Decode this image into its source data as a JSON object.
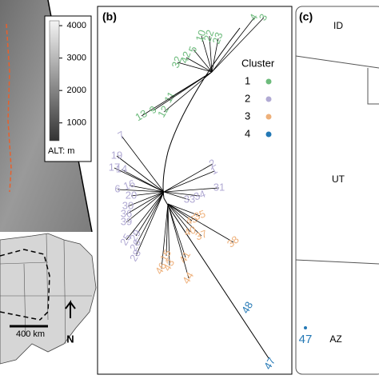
{
  "panel_a": {
    "colorbar": {
      "range": [
        450,
        4150
      ],
      "ticks": [
        1000,
        2000,
        3000,
        4000
      ],
      "unit_label": "ALT: m"
    },
    "scale_label": "400 km",
    "north_label": "N"
  },
  "panel_b": {
    "label": "(b)",
    "legend_title": "Cluster",
    "clusters": [
      {
        "name": "1",
        "color": "#6dbb7c",
        "leaves": [
          "4",
          "3",
          "10",
          "22",
          "23",
          "5",
          "32",
          "42",
          "11",
          "12",
          "13",
          "9"
        ]
      },
      {
        "name": "2",
        "color": "#b1aad4",
        "leaves": [
          "7",
          "19",
          "17",
          "14",
          "6",
          "16",
          "20",
          "2",
          "1",
          "33",
          "34",
          "31",
          "30",
          "36",
          "39",
          "29",
          "26",
          "28",
          "25"
        ]
      },
      {
        "name": "3",
        "color": "#eeb07a",
        "leaves": [
          "35",
          "45",
          "37",
          "40",
          "38",
          "41",
          "44",
          "43",
          "46",
          "15"
        ]
      },
      {
        "name": "4",
        "color": "#2378b5",
        "leaves": [
          "48",
          "47"
        ]
      }
    ]
  },
  "panel_c": {
    "label": "(c)",
    "states": [
      "ID",
      "UT",
      "AZ"
    ],
    "site": {
      "label": "47",
      "color": "#2378b5"
    }
  }
}
